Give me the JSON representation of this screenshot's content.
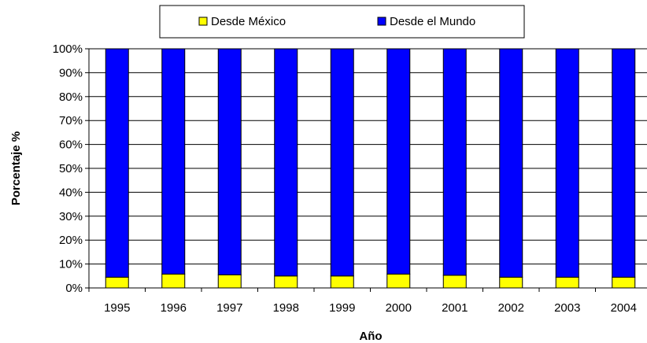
{
  "chart_data": {
    "type": "bar",
    "stacked": true,
    "percent_stacked": true,
    "categories": [
      "1995",
      "1996",
      "1997",
      "1998",
      "1999",
      "2000",
      "2001",
      "2002",
      "2003",
      "2004"
    ],
    "series": [
      {
        "name": "Desde México",
        "color": "#ffff00",
        "values": [
          4.5,
          5.8,
          5.5,
          5.0,
          5.0,
          5.8,
          5.3,
          4.5,
          4.5,
          4.5
        ]
      },
      {
        "name": "Desde el Mundo",
        "color": "#0000ff",
        "values": [
          95.5,
          94.2,
          94.5,
          95.0,
          95.0,
          94.2,
          94.7,
          95.5,
          95.5,
          95.5
        ]
      }
    ],
    "title": "",
    "xlabel": "Año",
    "ylabel": "Porcentaje %",
    "ylim": [
      0,
      100
    ],
    "yticks": [
      "0%",
      "10%",
      "20%",
      "30%",
      "40%",
      "50%",
      "60%",
      "70%",
      "80%",
      "90%",
      "100%"
    ],
    "grid": true,
    "legend_position": "top"
  }
}
